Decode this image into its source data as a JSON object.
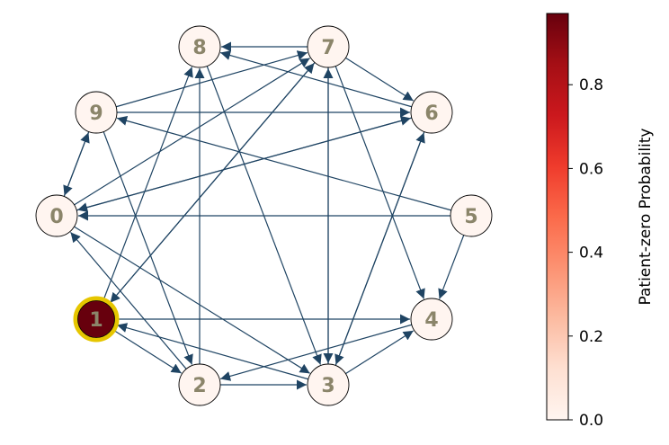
{
  "graph": {
    "edge_color": "#1f4463",
    "node_fill": "#fff5f0",
    "node_stroke": "#000000",
    "label_color": "#8b856a",
    "highlight_ring_color": "#e6c600",
    "nodes": [
      {
        "id": "0",
        "label": "0",
        "probability": 0.0
      },
      {
        "id": "1",
        "label": "1",
        "probability": 0.97,
        "highlighted": true
      },
      {
        "id": "2",
        "label": "2",
        "probability": 0.0
      },
      {
        "id": "3",
        "label": "3",
        "probability": 0.0
      },
      {
        "id": "4",
        "label": "4",
        "probability": 0.0
      },
      {
        "id": "5",
        "label": "5",
        "probability": 0.0
      },
      {
        "id": "6",
        "label": "6",
        "probability": 0.0
      },
      {
        "id": "7",
        "label": "7",
        "probability": 0.0
      },
      {
        "id": "8",
        "label": "8",
        "probability": 0.0
      },
      {
        "id": "9",
        "label": "9",
        "probability": 0.0
      }
    ],
    "edges": [
      [
        "0",
        "9"
      ],
      [
        "9",
        "0"
      ],
      [
        "0",
        "6"
      ],
      [
        "6",
        "0"
      ],
      [
        "0",
        "7"
      ],
      [
        "0",
        "3"
      ],
      [
        "1",
        "8"
      ],
      [
        "1",
        "7"
      ],
      [
        "7",
        "1"
      ],
      [
        "1",
        "4"
      ],
      [
        "1",
        "2"
      ],
      [
        "2",
        "0"
      ],
      [
        "2",
        "3"
      ],
      [
        "2",
        "8"
      ],
      [
        "3",
        "1"
      ],
      [
        "3",
        "4"
      ],
      [
        "3",
        "6"
      ],
      [
        "6",
        "3"
      ],
      [
        "3",
        "7"
      ],
      [
        "7",
        "3"
      ],
      [
        "4",
        "2"
      ],
      [
        "5",
        "0"
      ],
      [
        "5",
        "4"
      ],
      [
        "5",
        "9"
      ],
      [
        "6",
        "8"
      ],
      [
        "7",
        "8"
      ],
      [
        "7",
        "6"
      ],
      [
        "7",
        "4"
      ],
      [
        "8",
        "3"
      ],
      [
        "9",
        "7"
      ],
      [
        "9",
        "6"
      ],
      [
        "9",
        "2"
      ]
    ]
  },
  "colorbar": {
    "label": "Patient-zero Probability",
    "ticks": [
      {
        "value": 0.0,
        "label": "0.0"
      },
      {
        "value": 0.2,
        "label": "0.2"
      },
      {
        "value": 0.4,
        "label": "0.4"
      },
      {
        "value": 0.6,
        "label": "0.6"
      },
      {
        "value": 0.8,
        "label": "0.8"
      }
    ],
    "range": [
      0.0,
      0.97
    ],
    "colormap": [
      "#fff5f0",
      "#fee0d2",
      "#fcbba1",
      "#fc9272",
      "#fb6a4a",
      "#ef3b2c",
      "#cb181d",
      "#a50f15",
      "#67000d"
    ]
  }
}
